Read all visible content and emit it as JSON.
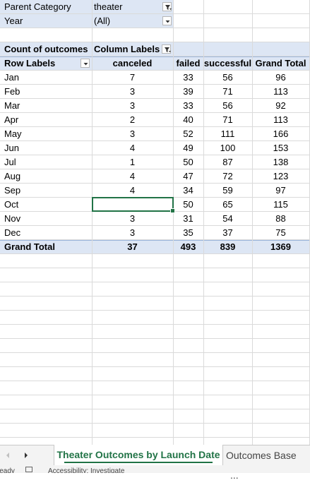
{
  "filters": {
    "parent_category_label": "Parent Category",
    "parent_category_value": "theater",
    "year_label": "Year",
    "year_value": "(All)"
  },
  "pivot": {
    "value_header": "Count of outcomes",
    "column_labels": "Column Labels",
    "row_labels": "Row Labels",
    "columns": [
      "canceled",
      "failed",
      "successful",
      "Grand Total"
    ],
    "rows": [
      {
        "month": "Jan",
        "canceled": "7",
        "failed": "33",
        "successful": "56",
        "total": "96"
      },
      {
        "month": "Feb",
        "canceled": "3",
        "failed": "39",
        "successful": "71",
        "total": "113"
      },
      {
        "month": "Mar",
        "canceled": "3",
        "failed": "33",
        "successful": "56",
        "total": "92"
      },
      {
        "month": "Apr",
        "canceled": "2",
        "failed": "40",
        "successful": "71",
        "total": "113"
      },
      {
        "month": "May",
        "canceled": "3",
        "failed": "52",
        "successful": "111",
        "total": "166"
      },
      {
        "month": "Jun",
        "canceled": "4",
        "failed": "49",
        "successful": "100",
        "total": "153"
      },
      {
        "month": "Jul",
        "canceled": "1",
        "failed": "50",
        "successful": "87",
        "total": "138"
      },
      {
        "month": "Aug",
        "canceled": "4",
        "failed": "47",
        "successful": "72",
        "total": "123"
      },
      {
        "month": "Sep",
        "canceled": "4",
        "failed": "34",
        "successful": "59",
        "total": "97"
      },
      {
        "month": "Oct",
        "canceled": "",
        "failed": "50",
        "successful": "65",
        "total": "115"
      },
      {
        "month": "Nov",
        "canceled": "3",
        "failed": "31",
        "successful": "54",
        "total": "88"
      },
      {
        "month": "Dec",
        "canceled": "3",
        "failed": "35",
        "successful": "37",
        "total": "75"
      }
    ],
    "grand_total": {
      "label": "Grand Total",
      "canceled": "37",
      "failed": "493",
      "successful": "839",
      "total": "1369"
    }
  },
  "sheet_tabs": {
    "active": "Theater Outcomes by Launch Date",
    "other": "Outcomes Base",
    "more": "..."
  },
  "statusbar": {
    "ready": "Ready",
    "accessibility": "Accessibility: Investigate"
  },
  "colors": {
    "header_fill": "#dde6f4",
    "accent": "#217346",
    "gridline": "#dadada"
  },
  "icons": {
    "filter_applied": "filter-applied-icon",
    "dropdown": "dropdown-arrow-icon",
    "scroll_right": "scroll-right-icon"
  }
}
